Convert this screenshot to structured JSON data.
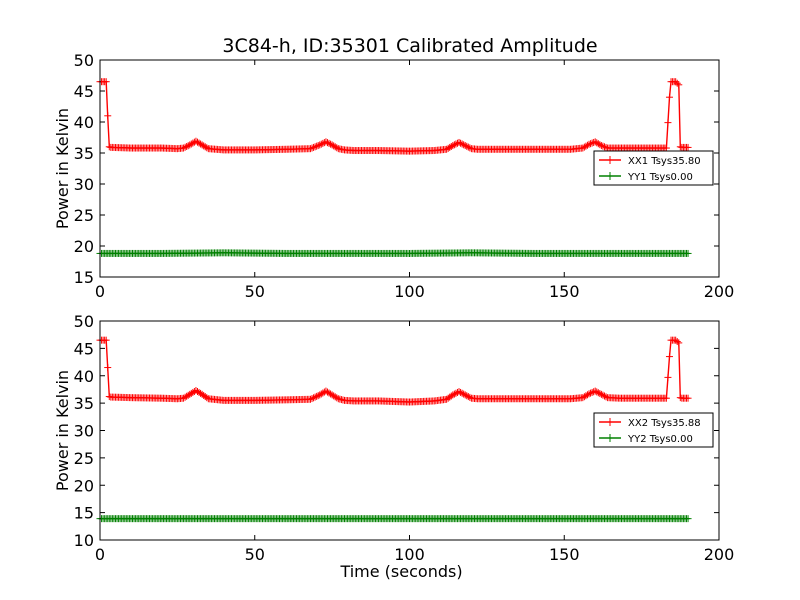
{
  "chart_data": [
    {
      "type": "line",
      "title": "3C84-h, ID:35301 Calibrated Amplitude",
      "xlabel": "",
      "ylabel": "Power in Kelvin",
      "xlim": [
        0,
        200
      ],
      "ylim": [
        15,
        50
      ],
      "xticks": [
        "0",
        "50",
        "100",
        "150",
        "200"
      ],
      "yticks": [
        "15",
        "20",
        "25",
        "30",
        "35",
        "40",
        "45",
        "50"
      ],
      "grid": false,
      "legend_position": "center-right",
      "series": [
        {
          "name": "XX1 Tsys35.80",
          "color": "#ff0000",
          "x": [
            0,
            1,
            2,
            2.5,
            3,
            3.5,
            4,
            10,
            20,
            25,
            27,
            29,
            31,
            33,
            35,
            40,
            50,
            60,
            68,
            71,
            73,
            75,
            77,
            79,
            82,
            90,
            100,
            108,
            112,
            114,
            116,
            118,
            120,
            122,
            126,
            135,
            145,
            152,
            156,
            158,
            160,
            162,
            164,
            168,
            175,
            183,
            184,
            184.5,
            185,
            186,
            187,
            187.5,
            188,
            190
          ],
          "y": [
            46.5,
            46.5,
            46.5,
            41,
            36,
            35.9,
            35.9,
            35.8,
            35.8,
            35.7,
            35.8,
            36.3,
            36.9,
            36.3,
            35.7,
            35.5,
            35.5,
            35.6,
            35.7,
            36.3,
            36.8,
            36.3,
            35.7,
            35.5,
            35.4,
            35.4,
            35.3,
            35.4,
            35.6,
            36.2,
            36.7,
            36.2,
            35.7,
            35.6,
            35.6,
            35.6,
            35.6,
            35.6,
            35.8,
            36.4,
            36.8,
            36.2,
            35.8,
            35.8,
            35.8,
            35.8,
            44,
            46.5,
            46.5,
            46.5,
            46,
            36,
            35.9,
            35.9
          ]
        },
        {
          "name": "YY1 Tsys0.00",
          "color": "#008000",
          "x": [
            0,
            20,
            40,
            60,
            80,
            100,
            120,
            140,
            160,
            180,
            190
          ],
          "y": [
            18.8,
            18.8,
            18.9,
            18.8,
            18.8,
            18.8,
            18.9,
            18.8,
            18.8,
            18.8,
            18.8
          ]
        }
      ]
    },
    {
      "type": "line",
      "title": "",
      "xlabel": "Time (seconds)",
      "ylabel": "Power in Kelvin",
      "xlim": [
        0,
        200
      ],
      "ylim": [
        10,
        50
      ],
      "xticks": [
        "0",
        "50",
        "100",
        "150",
        "200"
      ],
      "yticks": [
        "10",
        "15",
        "20",
        "25",
        "30",
        "35",
        "40",
        "45",
        "50"
      ],
      "grid": false,
      "legend_position": "center-right",
      "series": [
        {
          "name": "XX2 Tsys35.88",
          "color": "#ff0000",
          "x": [
            0,
            1,
            2,
            2.5,
            3,
            3.5,
            4,
            10,
            20,
            25,
            27,
            29,
            31,
            33,
            35,
            40,
            50,
            60,
            68,
            71,
            73,
            75,
            77,
            79,
            82,
            90,
            100,
            108,
            112,
            114,
            116,
            118,
            120,
            122,
            126,
            135,
            145,
            152,
            156,
            158,
            160,
            162,
            164,
            168,
            175,
            183,
            184,
            184.5,
            185,
            186,
            187,
            187.5,
            188,
            190
          ],
          "y": [
            46.5,
            46.5,
            46.5,
            41.5,
            36.2,
            36.1,
            36.1,
            36.0,
            35.9,
            35.8,
            35.9,
            36.6,
            37.3,
            36.6,
            35.8,
            35.5,
            35.5,
            35.6,
            35.7,
            36.5,
            37.2,
            36.5,
            35.8,
            35.5,
            35.4,
            35.4,
            35.2,
            35.4,
            35.7,
            36.5,
            37.1,
            36.5,
            35.9,
            35.8,
            35.8,
            35.8,
            35.8,
            35.8,
            36.0,
            36.7,
            37.2,
            36.6,
            36.0,
            35.9,
            35.9,
            35.9,
            43.5,
            46.5,
            46.5,
            46.5,
            46.0,
            36.0,
            35.9,
            35.9
          ]
        },
        {
          "name": "YY2 Tsys0.00",
          "color": "#008000",
          "x": [
            0,
            20,
            40,
            60,
            80,
            100,
            120,
            140,
            160,
            180,
            190
          ],
          "y": [
            13.9,
            13.9,
            13.9,
            13.9,
            13.9,
            13.9,
            13.9,
            13.9,
            13.9,
            13.9,
            13.9
          ]
        }
      ]
    }
  ]
}
